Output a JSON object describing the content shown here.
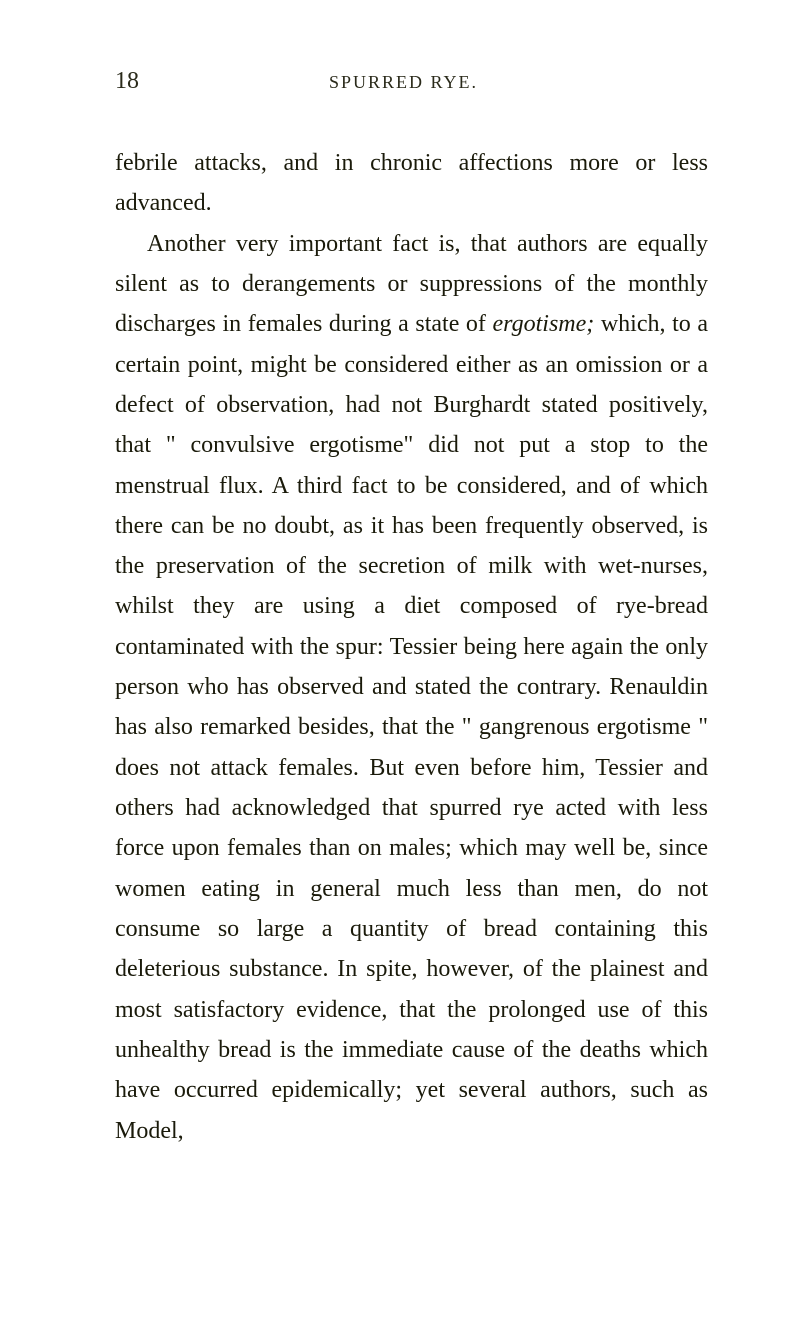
{
  "page": {
    "number": "18",
    "running_title": "SPURRED RYE.",
    "background_color": "#ffffff",
    "text_color": "#1a1a0a",
    "header_color": "#2a2a1a",
    "font_family": "Georgia, Times New Roman, serif",
    "body_fontsize": 24,
    "header_fontsize_number": 24,
    "header_fontsize_title": 18,
    "line_height": 1.68
  },
  "paragraphs": {
    "p1": "febrile attacks, and in chronic affections more or less advanced.",
    "p2_part1": "Another very important fact is, that authors are equally silent as to derangements or suppressions of the monthly discharges in females during a state of ",
    "p2_italic": "ergotisme;",
    "p2_part2": " which, to a certain point, might be considered either as an omission or a defect of observation, had not Burghardt stated positively, that \" convulsive ergotisme\" did not put a stop to the menstrual flux. A third fact to be considered, and of which there can be no doubt, as it has been frequently observed, is the preservation of the secretion of milk with wet-nurses, whilst they are using a diet composed of rye-bread contaminated with the spur: Tessier being here again the only person who has observed and stated the contrary. Renauldin has also remarked besides, that the \" gangrenous ergotisme \" does not attack females. But even before him, Tessier and others had acknowledged that spurred rye acted with less force upon females than on males; which may well be, since women eating in general much less than men, do not consume so large a quantity of bread containing this deleterious substance. In spite, however, of the plainest and most satisfactory evidence, that the prolonged use of this unhealthy bread is the immediate cause of the deaths which have occurred epidemically; yet several authors, such as Model,"
  }
}
